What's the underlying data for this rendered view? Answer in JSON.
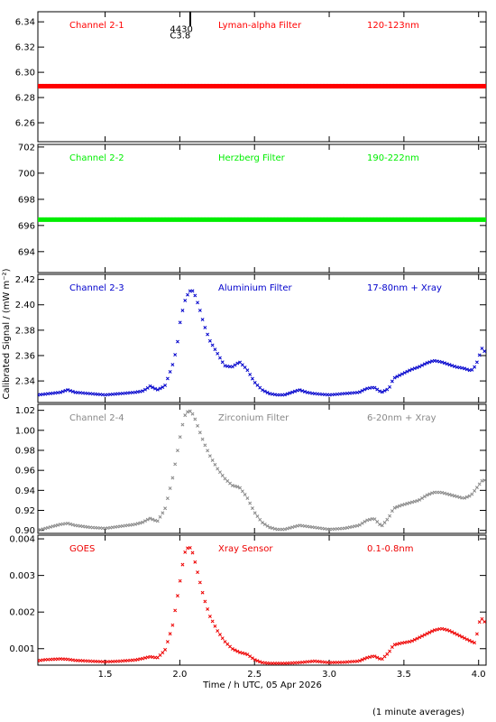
{
  "x_axis": {
    "label": "Time / h UTC, 05 Apr 2026",
    "range": [
      1.05,
      4.05
    ],
    "ticks": [
      1.5,
      2.0,
      2.5,
      3.0,
      3.5,
      4.0
    ],
    "tick_labels": [
      "1.5",
      "2.0",
      "2.5",
      "3.0",
      "3.5",
      "4.0"
    ]
  },
  "y_axis_title": "Calibrated Signal / (mW m⁻²)",
  "footnote": "(1 minute averages)",
  "annotations": [
    {
      "text": "4430",
      "x": 1.97,
      "y": 6.334,
      "panel": 0
    },
    {
      "text": "C3.8",
      "x": 1.97,
      "y": 6.329,
      "panel": 0
    }
  ],
  "event_marker": {
    "x": 2.07,
    "panel": 0
  },
  "chart_data": [
    {
      "type": "scatter",
      "channel_label": "Channel 2-1",
      "filter_label": "Lyman-alpha Filter",
      "band_label": "120-123nm",
      "color": "#ff0000",
      "ylim": [
        6.245,
        6.348
      ],
      "yticks": [
        6.26,
        6.28,
        6.3,
        6.32,
        6.34
      ],
      "ytick_labels": [
        "6.26",
        "6.28",
        "6.30",
        "6.32",
        "6.34"
      ],
      "marker": "dot",
      "x": [
        1.05,
        4.05
      ],
      "y": [
        6.289,
        6.289
      ]
    },
    {
      "type": "scatter",
      "channel_label": "Channel 2-2",
      "filter_label": "Herzberg Filter",
      "band_label": "190-222nm",
      "color": "#00ee00",
      "ylim": [
        692.4,
        702.2
      ],
      "yticks": [
        694,
        696,
        698,
        700,
        702
      ],
      "ytick_labels": [
        "694",
        "696",
        "698",
        "700",
        "702"
      ],
      "marker": "dot",
      "x": [
        1.05,
        4.05
      ],
      "y": [
        696.45,
        696.45
      ]
    },
    {
      "type": "scatter",
      "channel_label": "Channel 2-3",
      "filter_label": "Aluminium Filter",
      "band_label": "17-80nm + Xray",
      "color": "#0000cc",
      "ylim": [
        2.323,
        2.424
      ],
      "yticks": [
        2.34,
        2.36,
        2.38,
        2.4,
        2.42
      ],
      "ytick_labels": [
        "2.34",
        "2.36",
        "2.38",
        "2.40",
        "2.42"
      ],
      "marker": "x",
      "x": [
        1.05,
        1.2,
        1.25,
        1.3,
        1.4,
        1.5,
        1.6,
        1.7,
        1.75,
        1.78,
        1.8,
        1.85,
        1.9,
        1.95,
        1.98,
        2.0,
        2.03,
        2.06,
        2.08,
        2.1,
        2.13,
        2.16,
        2.2,
        2.25,
        2.3,
        2.35,
        2.4,
        2.45,
        2.5,
        2.55,
        2.6,
        2.65,
        2.7,
        2.75,
        2.8,
        2.85,
        2.9,
        3.0,
        3.1,
        3.2,
        3.25,
        3.3,
        3.35,
        3.4,
        3.43,
        3.48,
        3.55,
        3.6,
        3.65,
        3.7,
        3.75,
        3.8,
        3.85,
        3.9,
        3.95,
        3.98,
        4.0,
        4.02,
        4.05
      ],
      "y": [
        2.329,
        2.331,
        2.333,
        2.331,
        2.33,
        2.329,
        2.33,
        2.331,
        2.332,
        2.334,
        2.336,
        2.333,
        2.336,
        2.352,
        2.366,
        2.385,
        2.402,
        2.41,
        2.412,
        2.408,
        2.398,
        2.385,
        2.372,
        2.362,
        2.352,
        2.351,
        2.355,
        2.349,
        2.339,
        2.333,
        2.33,
        2.329,
        2.329,
        2.331,
        2.333,
        2.331,
        2.33,
        2.329,
        2.33,
        2.331,
        2.334,
        2.335,
        2.331,
        2.334,
        2.342,
        2.345,
        2.349,
        2.351,
        2.354,
        2.356,
        2.355,
        2.353,
        2.351,
        2.35,
        2.348,
        2.352,
        2.358,
        2.366,
        2.362
      ]
    },
    {
      "type": "scatter",
      "channel_label": "Channel 2-4",
      "filter_label": "Zirconium Filter",
      "band_label": "6-20nm + Xray",
      "color": "#888888",
      "ylim": [
        0.897,
        1.026
      ],
      "yticks": [
        0.9,
        0.92,
        0.94,
        0.96,
        0.98,
        1.0,
        1.02
      ],
      "ytick_labels": [
        "0.90",
        "0.92",
        "0.94",
        "0.96",
        "0.98",
        "1.00",
        "1.02"
      ],
      "marker": "x",
      "x": [
        1.05,
        1.15,
        1.2,
        1.25,
        1.3,
        1.4,
        1.5,
        1.6,
        1.7,
        1.75,
        1.8,
        1.85,
        1.9,
        1.95,
        2.0,
        2.03,
        2.06,
        2.08,
        2.1,
        2.13,
        2.16,
        2.2,
        2.25,
        2.3,
        2.35,
        2.4,
        2.45,
        2.5,
        2.55,
        2.6,
        2.65,
        2.7,
        2.75,
        2.8,
        2.85,
        2.9,
        3.0,
        3.1,
        3.2,
        3.25,
        3.3,
        3.35,
        3.4,
        3.43,
        3.48,
        3.55,
        3.6,
        3.65,
        3.7,
        3.75,
        3.8,
        3.85,
        3.9,
        3.95,
        4.0,
        4.03,
        4.05
      ],
      "y": [
        0.9,
        0.904,
        0.906,
        0.907,
        0.905,
        0.903,
        0.902,
        0.904,
        0.906,
        0.908,
        0.912,
        0.909,
        0.921,
        0.951,
        0.992,
        1.014,
        1.02,
        1.018,
        1.012,
        1.0,
        0.988,
        0.975,
        0.962,
        0.952,
        0.945,
        0.943,
        0.933,
        0.918,
        0.908,
        0.903,
        0.901,
        0.901,
        0.903,
        0.905,
        0.904,
        0.903,
        0.901,
        0.902,
        0.905,
        0.91,
        0.912,
        0.904,
        0.913,
        0.922,
        0.925,
        0.928,
        0.93,
        0.935,
        0.938,
        0.938,
        0.936,
        0.934,
        0.932,
        0.935,
        0.945,
        0.951,
        0.949
      ]
    },
    {
      "type": "scatter",
      "channel_label": "GOES",
      "filter_label": "Xray Sensor",
      "band_label": "0.1-0.8nm",
      "color": "#ee0000",
      "ylim": [
        0.00055,
        0.0041
      ],
      "yticks": [
        0.001,
        0.002,
        0.003,
        0.004
      ],
      "ytick_labels": [
        "0.001",
        "0.002",
        "0.003",
        "0.004"
      ],
      "marker": "x",
      "x": [
        1.05,
        1.1,
        1.2,
        1.25,
        1.3,
        1.4,
        1.5,
        1.6,
        1.7,
        1.75,
        1.8,
        1.85,
        1.9,
        1.95,
        2.0,
        2.03,
        2.06,
        2.08,
        2.1,
        2.13,
        2.16,
        2.2,
        2.25,
        2.3,
        2.35,
        2.4,
        2.45,
        2.5,
        2.55,
        2.6,
        2.7,
        2.8,
        2.85,
        2.9,
        3.0,
        3.1,
        3.2,
        3.25,
        3.3,
        3.35,
        3.4,
        3.43,
        3.48,
        3.55,
        3.6,
        3.65,
        3.7,
        3.75,
        3.8,
        3.85,
        3.9,
        3.95,
        3.98,
        4.0,
        4.03,
        4.05
      ],
      "y": [
        0.00067,
        0.0007,
        0.00072,
        0.00071,
        0.00068,
        0.00066,
        0.00064,
        0.00066,
        0.00069,
        0.00073,
        0.00078,
        0.00075,
        0.00095,
        0.0016,
        0.0028,
        0.0036,
        0.0038,
        0.0037,
        0.0034,
        0.0029,
        0.0024,
        0.0019,
        0.0015,
        0.0012,
        0.001,
        0.0009,
        0.00085,
        0.0007,
        0.00062,
        0.0006,
        0.0006,
        0.00062,
        0.00064,
        0.00066,
        0.00062,
        0.00063,
        0.00066,
        0.00075,
        0.0008,
        0.0007,
        0.0009,
        0.0011,
        0.00115,
        0.0012,
        0.0013,
        0.0014,
        0.0015,
        0.00155,
        0.0015,
        0.0014,
        0.0013,
        0.0012,
        0.00115,
        0.0017,
        0.00185,
        0.0016
      ]
    }
  ]
}
